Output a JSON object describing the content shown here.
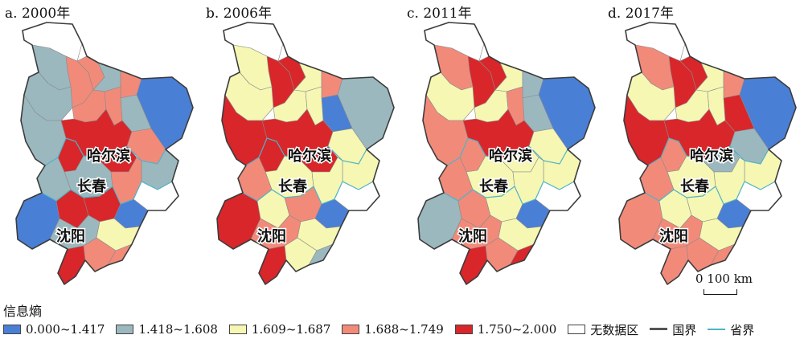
{
  "panels": [
    {
      "label": "a. 2000年",
      "cities": [
        "哈尔滨",
        "长春",
        "沈阳"
      ],
      "regions": {
        "north_tip": "nodata",
        "nw1": "c4",
        "nw2": "c2",
        "n1": "c4",
        "n2": "c2",
        "n3": "c4",
        "w1": "c2",
        "w2": "c2",
        "c1": "c4",
        "c2": "c5",
        "c3": "c4",
        "e1": "c2",
        "e2": "c1",
        "h1": "c5",
        "h2": "c5",
        "h3": "c4",
        "se1": "c2",
        "j1": "c2",
        "j2": "c2",
        "j3": "c4",
        "j4": "nodata",
        "l1": "c1",
        "l2": "c5",
        "l3": "c5",
        "l4": "c2",
        "l5": "c1",
        "l6": "c3",
        "l7": "c4",
        "l8": "c4",
        "l9": "c5"
      }
    },
    {
      "label": "b. 2006年",
      "cities": [
        "哈尔滨",
        "长春",
        "沈阳"
      ],
      "regions": {
        "north_tip": "nodata",
        "nw1": "c5",
        "nw2": "c3",
        "n1": "c5",
        "n2": "c3",
        "n3": "c4",
        "w1": "c3",
        "w2": "c5",
        "c1": "c3",
        "c2": "c5",
        "c3": "c3",
        "e1": "c1",
        "e2": "c2",
        "h1": "c5",
        "h2": "c5",
        "h3": "c3",
        "se1": "c3",
        "j1": "c3",
        "j2": "c4",
        "j3": "c3",
        "j4": "nodata",
        "l1": "c5",
        "l2": "c3",
        "l3": "c4",
        "l4": "c4",
        "l5": "c1",
        "l6": "c3",
        "l7": "c3",
        "l8": "c2",
        "l9": "c5"
      }
    },
    {
      "label": "c. 2011年",
      "cities": [
        "哈尔滨",
        "长春",
        "沈阳"
      ],
      "regions": {
        "north_tip": "nodata",
        "nw1": "c5",
        "nw2": "c4",
        "n1": "c5",
        "n2": "c3",
        "n3": "c2",
        "w1": "c3",
        "w2": "c4",
        "c1": "c3",
        "c2": "c5",
        "c3": "c4",
        "e1": "c2",
        "e2": "c1",
        "h1": "c4",
        "h2": "c3",
        "h3": "c3",
        "se1": "c3",
        "j1": "c3",
        "j2": "c4",
        "j3": "c3",
        "j4": "nodata",
        "l1": "c2",
        "l2": "c4",
        "l3": "c3",
        "l4": "c4",
        "l5": "c1",
        "l6": "c3",
        "l7": "c4",
        "l8": "c5",
        "l9": "c5"
      }
    },
    {
      "label": "d. 2017年",
      "cities": [
        "哈尔滨",
        "长春",
        "沈阳"
      ],
      "regions": {
        "north_tip": "nodata",
        "nw1": "c5",
        "nw2": "c4",
        "n1": "c5",
        "n2": "c3",
        "n3": "c4",
        "w1": "c3",
        "w2": "c5",
        "c1": "c3",
        "c2": "c5",
        "c3": "c3",
        "e1": "c5",
        "e2": "c1",
        "h1": "c4",
        "h2": "c2",
        "h3": "c2",
        "se1": "c3",
        "j1": "c3",
        "j2": "c4",
        "j3": "c3",
        "j4": "nodata",
        "l1": "c4",
        "l2": "c3",
        "l3": "c3",
        "l4": "c4",
        "l5": "c1",
        "l6": "c3",
        "l7": "c4",
        "l8": "c4",
        "l9": "c4"
      }
    }
  ],
  "scale": {
    "label": "0  100 km"
  },
  "legend": {
    "title": "信息熵",
    "classes": [
      {
        "id": "c1",
        "label": "0.000~1.417",
        "color": "#4a7fd6"
      },
      {
        "id": "c2",
        "label": "1.418~1.608",
        "color": "#9bb8bf"
      },
      {
        "id": "c3",
        "label": "1.609~1.687",
        "color": "#f5f7b3"
      },
      {
        "id": "c4",
        "label": "1.688~1.749",
        "color": "#f28a7a"
      },
      {
        "id": "c5",
        "label": "1.750~2.000",
        "color": "#d9262a"
      }
    ],
    "nodata": {
      "label": "无数据区",
      "color": "#ffffff"
    },
    "national_border": {
      "label": "国界",
      "color": "#555555"
    },
    "provincial_border": {
      "label": "省界",
      "color": "#4fb3c8"
    }
  }
}
